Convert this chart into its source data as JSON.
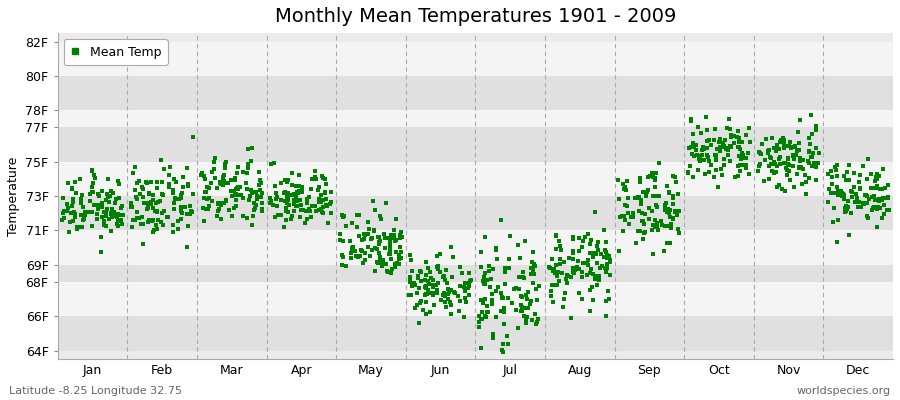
{
  "title": "Monthly Mean Temperatures 1901 - 2009",
  "ylabel": "Temperature",
  "xlabel_months": [
    "Jan",
    "Feb",
    "Mar",
    "Apr",
    "May",
    "Jun",
    "Jul",
    "Aug",
    "Sep",
    "Oct",
    "Nov",
    "Dec"
  ],
  "yticks": [
    64,
    66,
    68,
    69,
    71,
    73,
    75,
    77,
    78,
    80,
    82
  ],
  "ytick_labels": [
    "64F",
    "66F",
    "68F",
    "69F",
    "71F",
    "73F",
    "75F",
    "77F",
    "78F",
    "80F",
    "82F"
  ],
  "ylim": [
    63.5,
    82.5
  ],
  "dot_color": "#008000",
  "bg_color": "#FFFFFF",
  "plot_bg": "#EBEBEB",
  "band_light": "#F4F4F4",
  "band_dark": "#E0E0E0",
  "legend_label": "Mean Temp",
  "footer_left": "Latitude -8.25 Longitude 32.75",
  "footer_right": "worldspecies.org",
  "title_fontsize": 14,
  "axis_fontsize": 9,
  "footer_fontsize": 8,
  "monthly_means": [
    72.3,
    72.5,
    73.2,
    72.8,
    70.3,
    67.8,
    67.2,
    68.8,
    72.3,
    75.5,
    75.2,
    73.2
  ],
  "monthly_stds": [
    0.85,
    1.0,
    1.0,
    0.8,
    1.0,
    0.9,
    1.3,
    1.1,
    1.1,
    0.95,
    1.0,
    0.9
  ],
  "n_years": 109,
  "dot_size": 7
}
